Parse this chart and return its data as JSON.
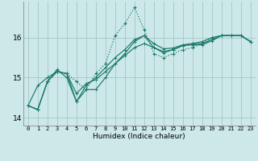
{
  "xlabel": "Humidex (Indice chaleur)",
  "bg_color": "#cce8e8",
  "grid_color": "#aacccc",
  "line_color": "#1a7a6a",
  "xlim": [
    -0.5,
    23.5
  ],
  "ylim": [
    13.8,
    16.9
  ],
  "yticks": [
    14,
    15,
    16
  ],
  "xticks": [
    0,
    1,
    2,
    3,
    4,
    5,
    6,
    7,
    8,
    9,
    10,
    11,
    12,
    13,
    14,
    15,
    16,
    17,
    18,
    19,
    20,
    21,
    22,
    23
  ],
  "series": [
    [
      14.3,
      14.2,
      14.9,
      15.15,
      15.1,
      14.9,
      14.7,
      15.1,
      15.35,
      16.05,
      16.35,
      16.75,
      16.2,
      15.6,
      15.5,
      15.6,
      15.7,
      15.75,
      15.85,
      16.0,
      16.05,
      16.05,
      16.05,
      15.9
    ],
    [
      14.3,
      14.8,
      15.0,
      15.15,
      15.1,
      14.6,
      14.85,
      14.95,
      15.15,
      15.35,
      15.55,
      15.75,
      15.85,
      15.75,
      15.65,
      15.7,
      15.8,
      15.85,
      15.9,
      16.0,
      16.05,
      16.05,
      16.05,
      15.9
    ],
    [
      14.3,
      14.2,
      14.9,
      15.15,
      15.1,
      14.4,
      14.8,
      15.0,
      15.25,
      15.5,
      15.7,
      15.95,
      16.05,
      15.85,
      15.72,
      15.74,
      15.82,
      15.85,
      15.85,
      15.95,
      16.05,
      16.05,
      16.05,
      15.9
    ],
    [
      14.3,
      14.2,
      14.9,
      15.2,
      15.0,
      14.4,
      14.7,
      14.7,
      15.0,
      15.35,
      15.6,
      15.9,
      16.05,
      15.75,
      15.62,
      15.7,
      15.8,
      15.82,
      15.82,
      15.92,
      16.05,
      16.05,
      16.05,
      15.9
    ]
  ],
  "dotted_series_idx": 0,
  "xlabel_fontsize": 6.5,
  "xtick_fontsize": 5.0,
  "ytick_fontsize": 6.5
}
